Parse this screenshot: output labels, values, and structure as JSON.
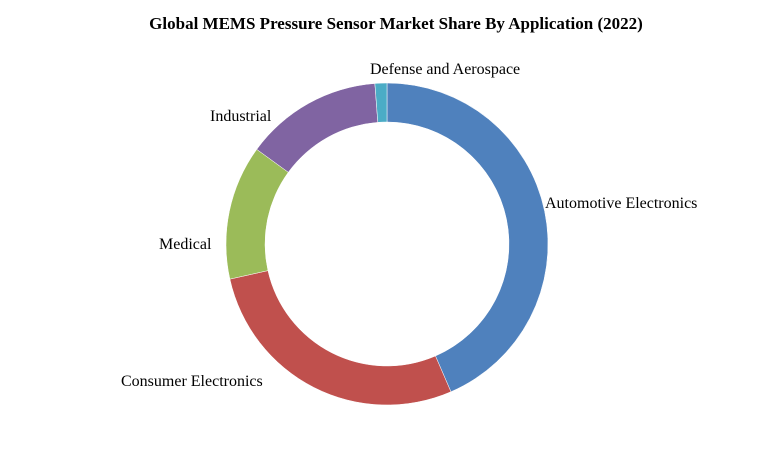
{
  "chart_data": {
    "type": "pie",
    "variant": "donut",
    "title": "Global MEMS Pressure Sensor Market Share By Application (2022)",
    "legend": "none",
    "slices": [
      {
        "label": "Automotive Electronics",
        "value": 43.5,
        "color": "#4F81BD"
      },
      {
        "label": "Consumer Electronics",
        "value": 28.0,
        "color": "#C0504D"
      },
      {
        "label": "Medical",
        "value": 13.5,
        "color": "#9BBB59"
      },
      {
        "label": "Industrial",
        "value": 13.8,
        "color": "#8064A2"
      },
      {
        "label": "Defense and Aerospace",
        "value": 1.2,
        "color": "#4BACC6"
      }
    ]
  }
}
